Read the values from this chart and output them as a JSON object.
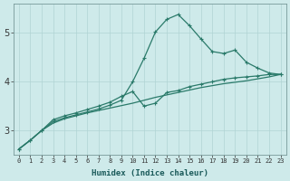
{
  "xlabel": "Humidex (Indice chaleur)",
  "background_color": "#ceeaea",
  "grid_color": "#b0d4d4",
  "line_color": "#2a7a6a",
  "xlim": [
    -0.5,
    23.5
  ],
  "ylim": [
    2.5,
    5.6
  ],
  "yticks": [
    3,
    4,
    5
  ],
  "xticks": [
    0,
    1,
    2,
    3,
    4,
    5,
    6,
    7,
    8,
    9,
    10,
    11,
    12,
    13,
    14,
    15,
    16,
    17,
    18,
    19,
    20,
    21,
    22,
    23
  ],
  "line1_x": [
    0,
    1,
    2,
    3,
    4,
    5,
    6,
    7,
    8,
    9,
    10,
    11,
    12,
    13,
    14,
    15,
    16,
    17,
    18,
    19,
    20,
    21,
    22,
    23
  ],
  "line1_y": [
    2.62,
    2.8,
    3.0,
    3.15,
    3.24,
    3.3,
    3.36,
    3.41,
    3.46,
    3.51,
    3.56,
    3.62,
    3.68,
    3.73,
    3.78,
    3.83,
    3.88,
    3.92,
    3.96,
    3.99,
    4.02,
    4.06,
    4.1,
    4.15
  ],
  "line2_x": [
    0,
    1,
    2,
    3,
    4,
    5,
    6,
    7,
    8,
    9,
    10,
    11,
    12,
    13,
    14,
    15,
    16,
    17,
    18,
    19,
    20,
    21,
    22,
    23
  ],
  "line2_y": [
    2.62,
    2.8,
    3.0,
    3.18,
    3.26,
    3.32,
    3.38,
    3.44,
    3.52,
    3.62,
    4.0,
    4.48,
    5.02,
    5.28,
    5.38,
    5.15,
    4.88,
    4.62,
    4.58,
    4.65,
    4.4,
    4.28,
    4.18,
    4.15
  ],
  "line3_x": [
    0,
    1,
    2,
    3,
    4,
    5,
    6,
    7,
    8,
    9,
    10,
    11,
    12,
    13,
    14,
    15,
    16,
    17,
    18,
    19,
    20,
    21,
    22,
    23
  ],
  "line3_y": [
    2.62,
    2.8,
    3.0,
    3.22,
    3.3,
    3.36,
    3.43,
    3.5,
    3.58,
    3.7,
    3.8,
    3.5,
    3.56,
    3.78,
    3.82,
    3.9,
    3.95,
    4.0,
    4.05,
    4.08,
    4.1,
    4.12,
    4.15,
    4.15
  ]
}
